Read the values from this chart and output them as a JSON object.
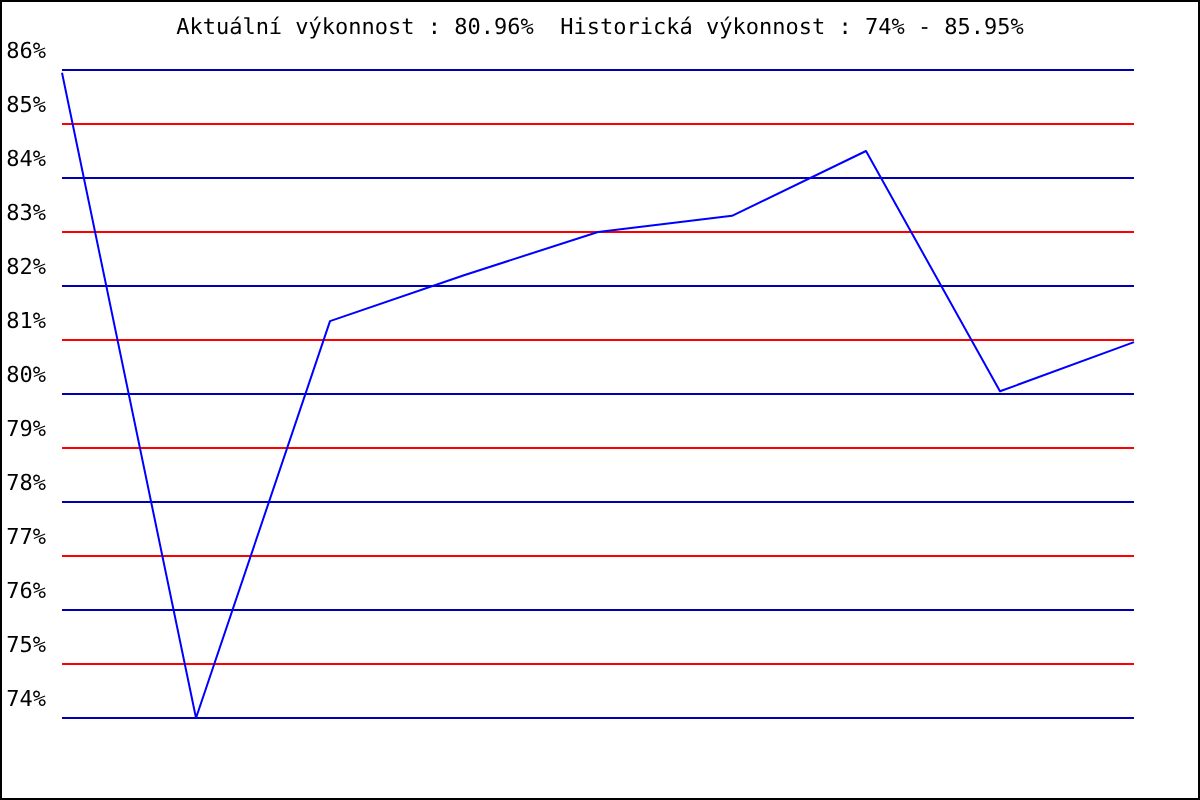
{
  "chart_data": {
    "type": "line",
    "title": "Aktuální výkonnost : 80.96%  Historická výkonnost : 74% - 85.95%",
    "categories": [
      null,
      null,
      null,
      null,
      null,
      null,
      null,
      null,
      null
    ],
    "series": [
      {
        "color": "#0000ff",
        "values": [
          85.95,
          74.0,
          81.35,
          82.2,
          83.0,
          83.3,
          84.5,
          80.05,
          80.96
        ]
      }
    ],
    "ylim": [
      74,
      86
    ],
    "yticks": [
      {
        "value": 74,
        "label": "74%"
      },
      {
        "value": 75,
        "label": "75%"
      },
      {
        "value": 76,
        "label": "76%"
      },
      {
        "value": 77,
        "label": "77%"
      },
      {
        "value": 78,
        "label": "78%"
      },
      {
        "value": 79,
        "label": "79%"
      },
      {
        "value": 80,
        "label": "80%"
      },
      {
        "value": 81,
        "label": "81%"
      },
      {
        "value": 82,
        "label": "82%"
      },
      {
        "value": 83,
        "label": "83%"
      },
      {
        "value": 84,
        "label": "84%"
      },
      {
        "value": 85,
        "label": "85%"
      },
      {
        "value": 86,
        "label": "86%"
      }
    ],
    "grid": "y",
    "tick_labels": "y",
    "marker": "none",
    "line_style": "solid"
  }
}
